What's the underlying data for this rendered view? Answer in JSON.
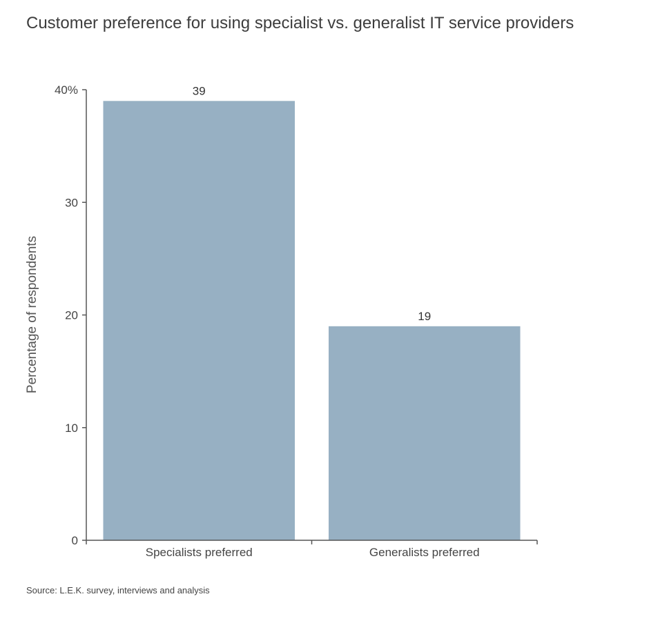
{
  "chart_data": {
    "type": "bar",
    "title": "Customer preference for using specialist vs. generalist IT service providers",
    "categories": [
      "Specialists preferred",
      "Generalists preferred"
    ],
    "values": [
      39,
      19
    ],
    "data_labels": [
      "39",
      "19"
    ],
    "ylabel": "Percentage of respondents",
    "xlabel": "",
    "ylim": [
      0,
      40
    ],
    "yticks": [
      0,
      10,
      20,
      30,
      40
    ],
    "ytick_labels": [
      "0",
      "10",
      "20",
      "30",
      "40%"
    ],
    "grid": false,
    "legend": "none",
    "bar_color": "#97b0c3",
    "axis_color": "#555555",
    "source": "Source: L.E.K. survey, interviews and analysis"
  }
}
